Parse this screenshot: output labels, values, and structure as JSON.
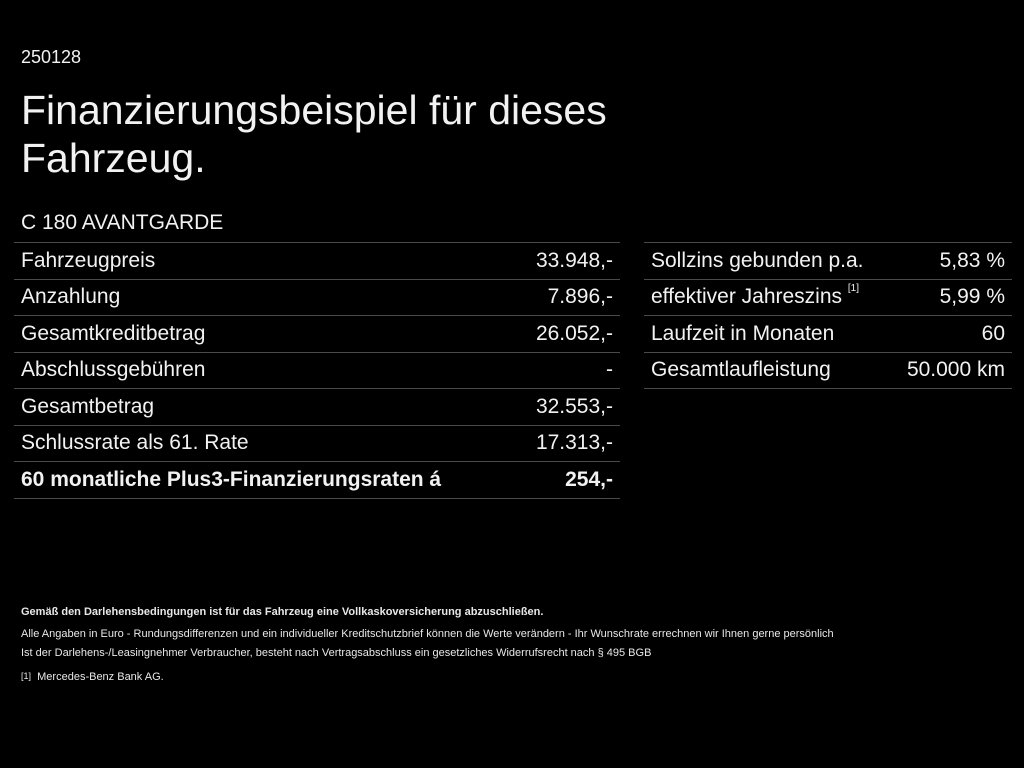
{
  "code": "250128",
  "title": "Finanzierungsbeispiel für dieses Fahrzeug.",
  "model": "C 180 AVANTGARDE",
  "left_table": [
    {
      "label": "Fahrzeugpreis",
      "value": "33.948,-"
    },
    {
      "label": "Anzahlung",
      "value": "7.896,-"
    },
    {
      "label": "Gesamtkreditbetrag",
      "value": "26.052,-"
    },
    {
      "label": "Abschlussgebühren",
      "value": "-"
    },
    {
      "label": "Gesamtbetrag",
      "value": "32.553,-"
    },
    {
      "label": "Schlussrate als 61. Rate",
      "value": "17.313,-"
    },
    {
      "label": "60 monatliche Plus3-Finanzierungsraten á",
      "value": "254,-"
    }
  ],
  "right_table": [
    {
      "label": "Sollzins gebunden p.a.",
      "value": "5,83 %"
    },
    {
      "label": "effektiver Jahreszins",
      "note": "[1]",
      "value": "5,99 %"
    },
    {
      "label": "Laufzeit in Monaten",
      "value": "60"
    },
    {
      "label": "Gesamtlaufleistung",
      "value": "50.000 km"
    }
  ],
  "footer": {
    "line1": "Gemäß den Darlehensbedingungen ist für das Fahrzeug eine Vollkaskoversicherung abzuschließen.",
    "line2": "Alle Angaben in Euro - Rundungsdifferenzen und ein individueller Kreditschutzbrief können die Werte verändern - Ihr Wunschrate errechnen wir Ihnen gerne persönlich",
    "line3": "Ist der Darlehens-/Leasingnehmer Verbraucher, besteht nach Vertragsabschluss ein gesetzliches Widerrufsrecht nach § 495 BGB",
    "note_marker": "[1]",
    "note_text": "Mercedes-Benz Bank AG."
  }
}
